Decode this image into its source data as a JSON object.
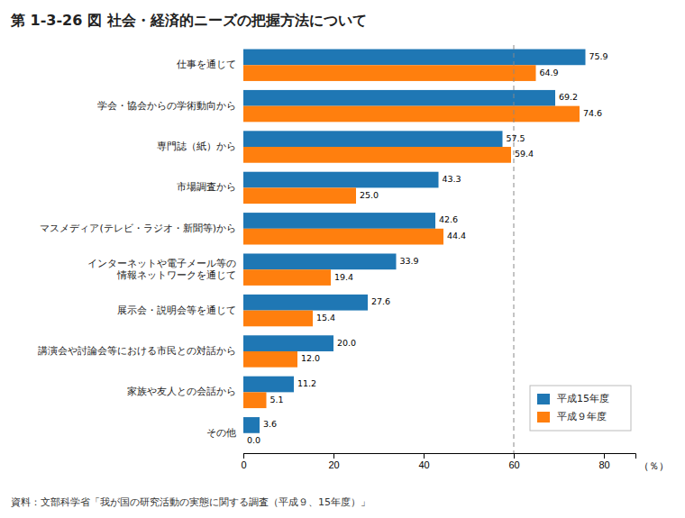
{
  "chart_data": {
    "type": "bar",
    "orientation": "horizontal",
    "title": "第 1-3-26 図 社会・経済的ニーズの把握方法について",
    "xlabel": "（％）",
    "annotations": [
      "資料：文部科学省「我が国の研究活動の実態に関する調査（平成９、15年度）」"
    ],
    "categories": [
      "仕事を通じて",
      "学会・協会からの学術動向から",
      "専門誌（紙）から",
      "市場調査から",
      "マスメディア(テレビ・ラジオ・新聞等)から",
      "インターネットや電子メール等の\n情報ネットワークを通じて",
      "展示会・説明会等を通じて",
      "講演会や討論会等における市民との対話から",
      "家族や友人との会話から",
      "その他"
    ],
    "series": [
      {
        "name": "平成15年度",
        "values": [
          75.9,
          69.2,
          57.5,
          43.3,
          42.6,
          33.9,
          27.6,
          20.0,
          11.2,
          3.6
        ],
        "value_labels": [
          "75.9",
          "69.2",
          "57.5",
          "43.3",
          "42.6",
          "33.9",
          "27.6",
          "20.0",
          "11.2",
          "3.6"
        ]
      },
      {
        "name": "平成９年度",
        "values": [
          64.9,
          74.6,
          59.4,
          25.0,
          44.4,
          19.4,
          15.4,
          12.0,
          5.1,
          0.0
        ],
        "value_labels": [
          "64.9",
          "74.6",
          "59.4",
          "25.0",
          "44.4",
          "19.4",
          "15.4",
          "12.0",
          "5.1",
          "0.0"
        ]
      }
    ],
    "xlim": [
      0,
      87
    ],
    "xticks": [
      0,
      20,
      40,
      60,
      80
    ],
    "reference_line": 60,
    "data_labels": true,
    "grid": false,
    "legend": "lower right"
  }
}
